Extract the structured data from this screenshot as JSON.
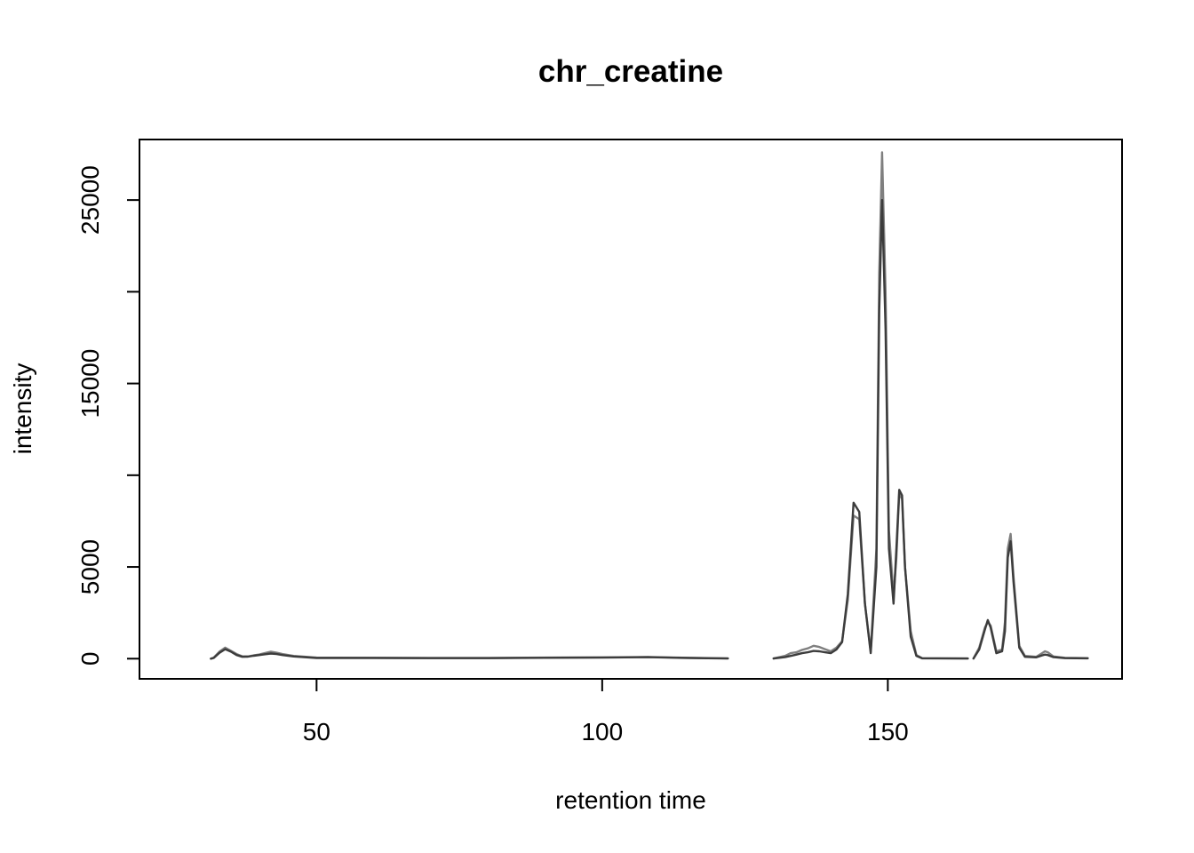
{
  "chart_data": {
    "type": "line",
    "title": "chr_creatine",
    "xlabel": "retention time",
    "ylabel": "intensity",
    "xlim": [
      19,
      191
    ],
    "ylim": [
      -1100,
      28300
    ],
    "x_ticks": [
      50,
      100,
      150
    ],
    "y_ticks": [
      0,
      5000,
      10000,
      15000,
      20000,
      25000
    ],
    "y_tick_labels": [
      "0",
      "5000",
      "",
      "15000",
      "",
      "25000"
    ],
    "grid": false,
    "legend": "none",
    "series": [
      {
        "color": "#7f7f7f",
        "segments": [
          [
            [
              31.5,
              0
            ],
            [
              32,
              60
            ],
            [
              33,
              380
            ],
            [
              34,
              600
            ],
            [
              35,
              430
            ],
            [
              36,
              250
            ],
            [
              37,
              130
            ],
            [
              38,
              120
            ],
            [
              39,
              180
            ],
            [
              40,
              230
            ],
            [
              41,
              310
            ],
            [
              42,
              380
            ],
            [
              43,
              330
            ],
            [
              44,
              250
            ],
            [
              46,
              150
            ],
            [
              50,
              60
            ],
            [
              60,
              50
            ],
            [
              70,
              40
            ],
            [
              80,
              40
            ],
            [
              90,
              60
            ],
            [
              100,
              70
            ],
            [
              108,
              90
            ],
            [
              115,
              50
            ],
            [
              122,
              20
            ]
          ],
          [
            [
              130,
              10
            ],
            [
              132,
              150
            ],
            [
              133,
              300
            ],
            [
              134,
              350
            ],
            [
              135,
              480
            ],
            [
              136,
              560
            ],
            [
              137,
              700
            ],
            [
              138,
              640
            ],
            [
              139,
              520
            ],
            [
              140,
              400
            ],
            [
              141,
              600
            ],
            [
              142,
              950
            ],
            [
              143,
              3200
            ],
            [
              144,
              7800
            ],
            [
              145,
              7600
            ],
            [
              146,
              3000
            ],
            [
              147,
              400
            ],
            [
              148,
              6000
            ],
            [
              148.5,
              21000
            ],
            [
              149,
              27600
            ],
            [
              149.6,
              20000
            ],
            [
              150.2,
              7000
            ],
            [
              151,
              3400
            ],
            [
              151.5,
              5500
            ],
            [
              152,
              9000
            ],
            [
              152.5,
              8700
            ],
            [
              153,
              5000
            ],
            [
              154,
              1500
            ],
            [
              155,
              200
            ],
            [
              156,
              30
            ],
            [
              164,
              10
            ]
          ],
          [
            [
              165,
              10
            ],
            [
              166,
              600
            ],
            [
              167,
              1700
            ],
            [
              167.5,
              2000
            ],
            [
              168,
              1800
            ],
            [
              169,
              400
            ],
            [
              170,
              500
            ],
            [
              170.5,
              2000
            ],
            [
              171,
              6000
            ],
            [
              171.5,
              6800
            ],
            [
              172,
              4500
            ],
            [
              173,
              700
            ],
            [
              174,
              150
            ],
            [
              176,
              100
            ],
            [
              177,
              300
            ],
            [
              177.5,
              400
            ],
            [
              178,
              350
            ],
            [
              179,
              120
            ],
            [
              181,
              50
            ],
            [
              185,
              30
            ]
          ]
        ]
      },
      {
        "color": "#3c3c3c",
        "segments": [
          [
            [
              31.5,
              0
            ],
            [
              32,
              40
            ],
            [
              33,
              320
            ],
            [
              34,
              520
            ],
            [
              35,
              380
            ],
            [
              36,
              200
            ],
            [
              37,
              100
            ],
            [
              38,
              110
            ],
            [
              39,
              160
            ],
            [
              40,
              200
            ],
            [
              41,
              240
            ],
            [
              42,
              280
            ],
            [
              43,
              250
            ],
            [
              44,
              200
            ],
            [
              46,
              120
            ],
            [
              50,
              40
            ],
            [
              60,
              40
            ],
            [
              70,
              30
            ],
            [
              80,
              30
            ],
            [
              90,
              50
            ],
            [
              100,
              60
            ],
            [
              108,
              80
            ],
            [
              115,
              40
            ],
            [
              122,
              10
            ]
          ],
          [
            [
              130,
              10
            ],
            [
              132,
              80
            ],
            [
              133,
              150
            ],
            [
              134,
              220
            ],
            [
              135,
              300
            ],
            [
              136,
              350
            ],
            [
              137,
              420
            ],
            [
              138,
              400
            ],
            [
              139,
              350
            ],
            [
              140,
              300
            ],
            [
              141,
              500
            ],
            [
              142,
              900
            ],
            [
              143,
              3500
            ],
            [
              144,
              8500
            ],
            [
              145,
              8000
            ],
            [
              146,
              3000
            ],
            [
              147,
              300
            ],
            [
              148,
              5000
            ],
            [
              148.5,
              19000
            ],
            [
              149,
              25000
            ],
            [
              149.6,
              18000
            ],
            [
              150.2,
              6000
            ],
            [
              151,
              3000
            ],
            [
              151.5,
              6000
            ],
            [
              152,
              9200
            ],
            [
              152.5,
              8900
            ],
            [
              153,
              5000
            ],
            [
              154,
              1200
            ],
            [
              155,
              150
            ],
            [
              156,
              20
            ],
            [
              164,
              10
            ]
          ],
          [
            [
              165,
              10
            ],
            [
              166,
              500
            ],
            [
              167,
              1600
            ],
            [
              167.5,
              2100
            ],
            [
              168,
              1700
            ],
            [
              169,
              300
            ],
            [
              170,
              400
            ],
            [
              170.5,
              1500
            ],
            [
              171,
              5500
            ],
            [
              171.5,
              6400
            ],
            [
              172,
              4200
            ],
            [
              173,
              600
            ],
            [
              174,
              100
            ],
            [
              176,
              70
            ],
            [
              177,
              180
            ],
            [
              177.5,
              220
            ],
            [
              178,
              200
            ],
            [
              179,
              80
            ],
            [
              181,
              30
            ],
            [
              185,
              20
            ]
          ]
        ]
      }
    ]
  }
}
